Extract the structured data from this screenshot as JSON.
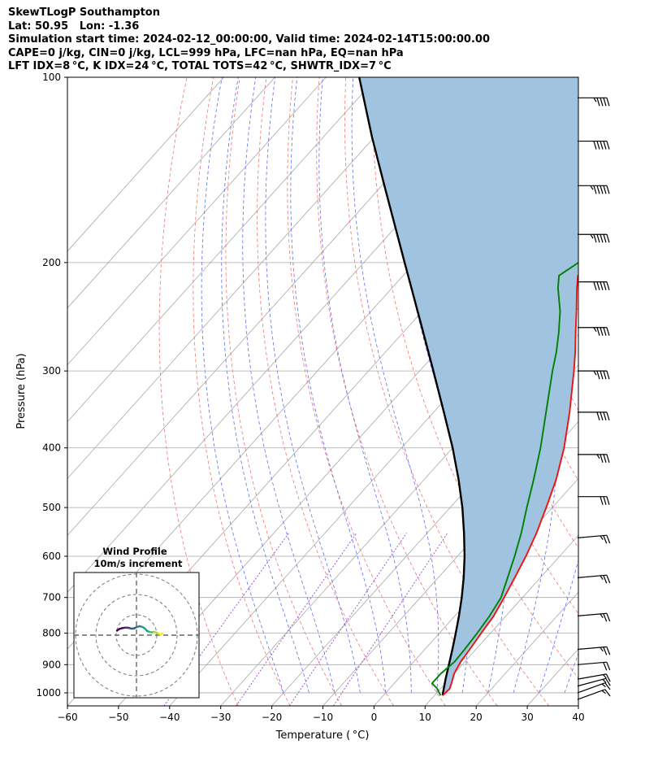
{
  "header": {
    "title": "SkewTLogP Southampton",
    "location": "Lat: 50.95   Lon: -1.36",
    "times": "Simulation start time: 2024-02-12_00:00:00, Valid time: 2024-02-14T15:00:00.00",
    "indices1": "CAPE=0 j/kg, CIN=0 j/kg, LCL=999 hPa, LFC=nan hPa, EQ=nan hPa",
    "indices2": "LFT IDX=8 °C, K IDX=24 °C, TOTAL TOTS=42 °C, SHWTR_IDX=7 °C"
  },
  "inset": {
    "title": "Wind Profile",
    "subtitle": "10m/s increment"
  },
  "colors": {
    "temperature": "#ee1111",
    "dewpoint": "#008000",
    "parcel": "#000000",
    "shade": "#a0c4e0",
    "isotherm": "#a8a8a8",
    "dry_adiabat": "#ee6666",
    "moist_adiabat": "#5566ee",
    "mixing_ratio": "#9944cc"
  },
  "chart_data": {
    "type": "line",
    "title": "",
    "xlabel": "Temperature ( °C)",
    "ylabel": "Pressure (hPa)",
    "xlim": [
      -60,
      40
    ],
    "ylim": [
      1050,
      100
    ],
    "y_scale": "log",
    "skew": "skew-T log-P",
    "x_ticks": [
      -60,
      -50,
      -40,
      -30,
      -20,
      -10,
      0,
      10,
      20,
      30,
      40
    ],
    "x_tick_labels": [
      "−60",
      "−50",
      "−40",
      "−30",
      "−20",
      "−10",
      "0",
      "10",
      "20",
      "30",
      "40"
    ],
    "y_ticks": [
      1000,
      900,
      800,
      700,
      600,
      500,
      400,
      300,
      200,
      100
    ],
    "y_tick_labels": [
      "1000",
      "900",
      "800",
      "700",
      "600",
      "500",
      "400",
      "300",
      "200",
      "100"
    ],
    "grid": true,
    "series": [
      {
        "key": "temperature",
        "pressure": [
          1010,
          985,
          965,
          930,
          890,
          850,
          800,
          750,
          700,
          650,
          600,
          550,
          500,
          450,
          400,
          350,
          300,
          280,
          260,
          240,
          220,
          210,
          200,
          185,
          175,
          160,
          148,
          135,
          125,
          115,
          100
        ],
        "temperature": [
          11.6,
          11.8,
          11.2,
          10.0,
          9.2,
          8.8,
          8.2,
          7.6,
          6.4,
          5.0,
          3.4,
          1.4,
          -1.2,
          -4.2,
          -8.2,
          -13.4,
          -19.8,
          -22.8,
          -26.2,
          -29.8,
          -33.8,
          -35.8,
          -34.0,
          -30.0,
          -28.5,
          -27.0,
          -26.5,
          -26.0,
          -26.5,
          -27.0,
          -28.0
        ]
      },
      {
        "key": "dewpoint",
        "pressure": [
          1010,
          985,
          965,
          930,
          890,
          850,
          800,
          750,
          700,
          650,
          600,
          550,
          500,
          450,
          400,
          350,
          300,
          280,
          260,
          240,
          220,
          210,
          200,
          185,
          175,
          160,
          148,
          135,
          125,
          115,
          100
        ],
        "temperature": [
          11.2,
          9.4,
          7.4,
          7.4,
          8.0,
          7.8,
          7.4,
          6.8,
          5.8,
          3.6,
          1.2,
          -1.6,
          -5.0,
          -8.6,
          -12.8,
          -18.0,
          -24.0,
          -26.5,
          -29.5,
          -33.0,
          -37.5,
          -39.5,
          -38.0,
          -34.5,
          -33.5,
          -35.0,
          -40.0,
          -44.0,
          -46.5,
          -49.0,
          -52.0
        ]
      },
      {
        "key": "parcel",
        "pressure": [
          1010,
          1000,
          950,
          900,
          850,
          800,
          750,
          700,
          650,
          600,
          550,
          500,
          450,
          400,
          350,
          300,
          250,
          200,
          150,
          125,
          100
        ],
        "temperature": [
          11.6,
          11.2,
          9.3,
          7.4,
          5.4,
          3.2,
          0.8,
          -1.9,
          -5.0,
          -8.6,
          -12.8,
          -17.6,
          -23.3,
          -30.0,
          -38.0,
          -47.3,
          -58.4,
          -72.0,
          -89.5,
          -100.5,
          -113.5
        ]
      }
    ],
    "shaded_region": "between parcel and temperature profiles",
    "wind_barbs": {
      "pressure": [
        1025,
        1000,
        975,
        950,
        900,
        850,
        750,
        650,
        560,
        480,
        410,
        350,
        300,
        255,
        215,
        180,
        150,
        127,
        108
      ],
      "speed_kt": [
        15,
        15,
        15,
        15,
        20,
        25,
        25,
        25,
        25,
        30,
        35,
        40,
        45,
        45,
        50,
        55,
        55,
        50,
        45
      ],
      "direction_deg": [
        250,
        250,
        255,
        260,
        265,
        265,
        265,
        265,
        265,
        270,
        270,
        270,
        270,
        270,
        270,
        270,
        270,
        270,
        270
      ]
    },
    "hodograph": {
      "u": [
        -9.6,
        -8.5,
        -7.2,
        -5.5,
        -3.9,
        -2.5,
        -1.2,
        0.2,
        1.6,
        3.0,
        4.1,
        5.2,
        6.5,
        7.6,
        8.6,
        9.8,
        11.0,
        12.0,
        12.8
      ],
      "v": [
        2.2,
        3.0,
        3.4,
        3.7,
        3.6,
        3.2,
        3.3,
        4.0,
        4.4,
        4.0,
        3.3,
        2.1,
        1.5,
        1.4,
        1.6,
        1.2,
        0.6,
        0.4,
        0.8
      ],
      "rings_ms": [
        10,
        20,
        30
      ]
    }
  }
}
